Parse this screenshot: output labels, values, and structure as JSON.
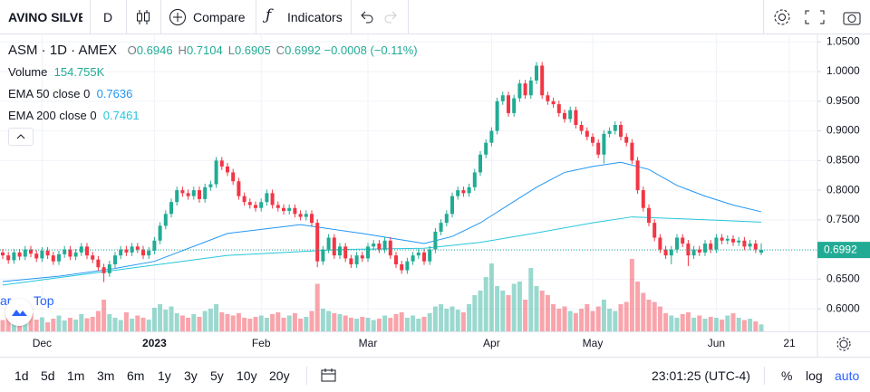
{
  "toolbar": {
    "symbol": "AVINO SILVE",
    "interval": "D",
    "compare": "Compare",
    "indicators": "Indicators"
  },
  "chart_data": {
    "type": "candlestick",
    "symbol_line": "ASM · 1D · AMEX",
    "ohlc_letters": [
      "O",
      "H",
      "L",
      "C"
    ],
    "change": "−0.0008 (−0.11%)",
    "up_color": "#22ab94",
    "down_color": "#f23645",
    "ohlc": [
      [
        0.695,
        0.701,
        0.684,
        0.69
      ],
      [
        0.69,
        0.696,
        0.676,
        0.682
      ],
      [
        0.682,
        0.701,
        0.676,
        0.695
      ],
      [
        0.695,
        0.701,
        0.682,
        0.688
      ],
      [
        0.688,
        0.706,
        0.682,
        0.7
      ],
      [
        0.7,
        0.706,
        0.687,
        0.693
      ],
      [
        0.693,
        0.699,
        0.679,
        0.685
      ],
      [
        0.685,
        0.704,
        0.679,
        0.698
      ],
      [
        0.698,
        0.704,
        0.684,
        0.69
      ],
      [
        0.69,
        0.696,
        0.674,
        0.68
      ],
      [
        0.68,
        0.698,
        0.674,
        0.692
      ],
      [
        0.692,
        0.706,
        0.686,
        0.7
      ],
      [
        0.7,
        0.706,
        0.682,
        0.688
      ],
      [
        0.688,
        0.701,
        0.682,
        0.695
      ],
      [
        0.695,
        0.711,
        0.689,
        0.705
      ],
      [
        0.705,
        0.711,
        0.684,
        0.69
      ],
      [
        0.69,
        0.696,
        0.677,
        0.683
      ],
      [
        0.683,
        0.689,
        0.664,
        0.67
      ],
      [
        0.67,
        0.676,
        0.645,
        0.66
      ],
      [
        0.66,
        0.681,
        0.654,
        0.675
      ],
      [
        0.675,
        0.696,
        0.669,
        0.69
      ],
      [
        0.69,
        0.706,
        0.684,
        0.7
      ],
      [
        0.7,
        0.706,
        0.689,
        0.695
      ],
      [
        0.695,
        0.711,
        0.689,
        0.705
      ],
      [
        0.705,
        0.711,
        0.694,
        0.7
      ],
      [
        0.7,
        0.706,
        0.684,
        0.69
      ],
      [
        0.69,
        0.704,
        0.684,
        0.698
      ],
      [
        0.698,
        0.721,
        0.692,
        0.715
      ],
      [
        0.715,
        0.746,
        0.709,
        0.74
      ],
      [
        0.74,
        0.766,
        0.734,
        0.76
      ],
      [
        0.76,
        0.786,
        0.754,
        0.78
      ],
      [
        0.78,
        0.806,
        0.774,
        0.8
      ],
      [
        0.8,
        0.806,
        0.789,
        0.795
      ],
      [
        0.795,
        0.801,
        0.784,
        0.79
      ],
      [
        0.79,
        0.806,
        0.784,
        0.8
      ],
      [
        0.8,
        0.806,
        0.779,
        0.785
      ],
      [
        0.785,
        0.811,
        0.779,
        0.805
      ],
      [
        0.805,
        0.816,
        0.799,
        0.81
      ],
      [
        0.81,
        0.856,
        0.804,
        0.85
      ],
      [
        0.85,
        0.856,
        0.834,
        0.84
      ],
      [
        0.84,
        0.846,
        0.824,
        0.83
      ],
      [
        0.83,
        0.836,
        0.809,
        0.815
      ],
      [
        0.815,
        0.821,
        0.784,
        0.79
      ],
      [
        0.79,
        0.796,
        0.774,
        0.78
      ],
      [
        0.78,
        0.786,
        0.769,
        0.775
      ],
      [
        0.775,
        0.781,
        0.764,
        0.77
      ],
      [
        0.77,
        0.786,
        0.764,
        0.78
      ],
      [
        0.78,
        0.801,
        0.774,
        0.795
      ],
      [
        0.795,
        0.801,
        0.769,
        0.775
      ],
      [
        0.775,
        0.781,
        0.764,
        0.77
      ],
      [
        0.77,
        0.776,
        0.759,
        0.765
      ],
      [
        0.765,
        0.776,
        0.759,
        0.77
      ],
      [
        0.77,
        0.776,
        0.754,
        0.76
      ],
      [
        0.76,
        0.766,
        0.749,
        0.755
      ],
      [
        0.755,
        0.766,
        0.749,
        0.76
      ],
      [
        0.76,
        0.766,
        0.739,
        0.745
      ],
      [
        0.745,
        0.751,
        0.67,
        0.68
      ],
      [
        0.68,
        0.706,
        0.674,
        0.7
      ],
      [
        0.7,
        0.726,
        0.694,
        0.72
      ],
      [
        0.72,
        0.726,
        0.684,
        0.69
      ],
      [
        0.69,
        0.711,
        0.684,
        0.705
      ],
      [
        0.705,
        0.711,
        0.679,
        0.685
      ],
      [
        0.685,
        0.691,
        0.669,
        0.675
      ],
      [
        0.675,
        0.696,
        0.669,
        0.69
      ],
      [
        0.69,
        0.696,
        0.679,
        0.685
      ],
      [
        0.685,
        0.711,
        0.679,
        0.705
      ],
      [
        0.705,
        0.716,
        0.699,
        0.71
      ],
      [
        0.71,
        0.716,
        0.694,
        0.7
      ],
      [
        0.7,
        0.721,
        0.694,
        0.715
      ],
      [
        0.715,
        0.721,
        0.684,
        0.69
      ],
      [
        0.69,
        0.696,
        0.669,
        0.675
      ],
      [
        0.675,
        0.681,
        0.659,
        0.665
      ],
      [
        0.665,
        0.686,
        0.659,
        0.68
      ],
      [
        0.68,
        0.696,
        0.674,
        0.69
      ],
      [
        0.69,
        0.701,
        0.684,
        0.695
      ],
      [
        0.695,
        0.701,
        0.674,
        0.68
      ],
      [
        0.68,
        0.706,
        0.674,
        0.7
      ],
      [
        0.7,
        0.736,
        0.694,
        0.73
      ],
      [
        0.73,
        0.751,
        0.724,
        0.745
      ],
      [
        0.745,
        0.766,
        0.739,
        0.76
      ],
      [
        0.76,
        0.796,
        0.754,
        0.79
      ],
      [
        0.79,
        0.806,
        0.784,
        0.8
      ],
      [
        0.8,
        0.806,
        0.789,
        0.795
      ],
      [
        0.795,
        0.811,
        0.789,
        0.805
      ],
      [
        0.805,
        0.836,
        0.799,
        0.83
      ],
      [
        0.83,
        0.866,
        0.824,
        0.86
      ],
      [
        0.86,
        0.886,
        0.854,
        0.88
      ],
      [
        0.88,
        0.906,
        0.874,
        0.9
      ],
      [
        0.9,
        0.956,
        0.894,
        0.95
      ],
      [
        0.95,
        0.966,
        0.944,
        0.96
      ],
      [
        0.96,
        0.966,
        0.924,
        0.93
      ],
      [
        0.93,
        0.961,
        0.924,
        0.955
      ],
      [
        0.955,
        0.986,
        0.949,
        0.98
      ],
      [
        0.98,
        0.986,
        0.954,
        0.96
      ],
      [
        0.96,
        0.991,
        0.954,
        0.985
      ],
      [
        0.985,
        1.016,
        0.979,
        1.01
      ],
      [
        1.01,
        1.016,
        0.954,
        0.96
      ],
      [
        0.96,
        0.966,
        0.944,
        0.95
      ],
      [
        0.95,
        0.956,
        0.939,
        0.945
      ],
      [
        0.945,
        0.951,
        0.924,
        0.93
      ],
      [
        0.93,
        0.936,
        0.914,
        0.92
      ],
      [
        0.92,
        0.941,
        0.914,
        0.935
      ],
      [
        0.935,
        0.941,
        0.904,
        0.91
      ],
      [
        0.91,
        0.916,
        0.894,
        0.9
      ],
      [
        0.9,
        0.906,
        0.884,
        0.89
      ],
      [
        0.89,
        0.896,
        0.874,
        0.88
      ],
      [
        0.88,
        0.886,
        0.854,
        0.86
      ],
      [
        0.86,
        0.901,
        0.845,
        0.895
      ],
      [
        0.895,
        0.906,
        0.889,
        0.9
      ],
      [
        0.9,
        0.916,
        0.894,
        0.91
      ],
      [
        0.91,
        0.916,
        0.884,
        0.89
      ],
      [
        0.89,
        0.896,
        0.874,
        0.88
      ],
      [
        0.88,
        0.886,
        0.844,
        0.85
      ],
      [
        0.85,
        0.856,
        0.794,
        0.8
      ],
      [
        0.8,
        0.806,
        0.764,
        0.77
      ],
      [
        0.77,
        0.776,
        0.739,
        0.745
      ],
      [
        0.745,
        0.751,
        0.714,
        0.72
      ],
      [
        0.72,
        0.726,
        0.694,
        0.7
      ],
      [
        0.7,
        0.706,
        0.684,
        0.69
      ],
      [
        0.69,
        0.706,
        0.675,
        0.7
      ],
      [
        0.7,
        0.726,
        0.694,
        0.72
      ],
      [
        0.72,
        0.726,
        0.704,
        0.71
      ],
      [
        0.71,
        0.716,
        0.672,
        0.69
      ],
      [
        0.69,
        0.706,
        0.684,
        0.7
      ],
      [
        0.7,
        0.706,
        0.689,
        0.695
      ],
      [
        0.695,
        0.716,
        0.689,
        0.71
      ],
      [
        0.71,
        0.716,
        0.694,
        0.7
      ],
      [
        0.7,
        0.726,
        0.694,
        0.72
      ],
      [
        0.72,
        0.726,
        0.709,
        0.715
      ],
      [
        0.715,
        0.724,
        0.709,
        0.718
      ],
      [
        0.718,
        0.724,
        0.706,
        0.712
      ],
      [
        0.712,
        0.721,
        0.706,
        0.715
      ],
      [
        0.715,
        0.721,
        0.699,
        0.705
      ],
      [
        0.705,
        0.716,
        0.699,
        0.71
      ],
      [
        0.71,
        0.716,
        0.694,
        0.7
      ],
      [
        0.6946,
        0.7104,
        0.6905,
        0.6992
      ]
    ],
    "volume": {
      "name": "Volume",
      "value_label": "154.755K",
      "values": [
        250000,
        300000,
        180000,
        350000,
        220000,
        400000,
        260000,
        310000,
        200000,
        280000,
        350000,
        240000,
        300000,
        260000,
        380000,
        290000,
        320000,
        450000,
        700000,
        380000,
        300000,
        250000,
        420000,
        280000,
        350000,
        300000,
        260000,
        520000,
        600000,
        480000,
        550000,
        400000,
        350000,
        300000,
        380000,
        320000,
        450000,
        500000,
        600000,
        420000,
        380000,
        350000,
        400000,
        300000,
        280000,
        320000,
        350000,
        300000,
        380000,
        420000,
        300000,
        350000,
        400000,
        280000,
        320000,
        450000,
        1050000,
        500000,
        450000,
        400000,
        380000,
        350000,
        300000,
        280000,
        320000,
        300000,
        250000,
        280000,
        350000,
        300000,
        380000,
        420000,
        300000,
        350000,
        280000,
        320000,
        400000,
        550000,
        600000,
        500000,
        550000,
        480000,
        420000,
        600000,
        800000,
        900000,
        1200000,
        1500000,
        1000000,
        900000,
        800000,
        1050000,
        1100000,
        700000,
        1400000,
        1000000,
        900000,
        800000,
        600000,
        500000,
        550000,
        450000,
        400000,
        500000,
        600000,
        450000,
        550000,
        700000,
        500000,
        450000,
        600000,
        650000,
        1600000,
        1100000,
        850000,
        700000,
        650000,
        550000,
        400000,
        350000,
        300000,
        380000,
        420000,
        300000,
        350000,
        280000,
        320000,
        300000,
        260000,
        350000,
        400000,
        300000,
        250000,
        280000,
        220000,
        154755
      ]
    },
    "series": [
      {
        "name": "EMA 50 close 0",
        "color": "#2196f3",
        "x": [
          0,
          10,
          20,
          27,
          40,
          53,
          64,
          75,
          80,
          85,
          90,
          95,
          100,
          105,
          110,
          115,
          120,
          125,
          130,
          135
        ],
        "values": [
          0.646,
          0.655,
          0.668,
          0.68,
          0.727,
          0.742,
          0.727,
          0.71,
          0.722,
          0.745,
          0.775,
          0.805,
          0.83,
          0.84,
          0.847,
          0.835,
          0.808,
          0.79,
          0.775,
          0.7636
        ]
      },
      {
        "name": "EMA 200 close 0",
        "color": "#26c6da",
        "x": [
          0,
          20,
          40,
          60,
          75,
          85,
          95,
          105,
          112,
          120,
          128,
          135
        ],
        "values": [
          0.64,
          0.665,
          0.69,
          0.7,
          0.702,
          0.712,
          0.728,
          0.745,
          0.755,
          0.752,
          0.749,
          0.7461
        ]
      }
    ],
    "ylim": [
      0.562,
      1.052
    ],
    "yticks": [
      {
        "value": 1.05,
        "label": "1.0500"
      },
      {
        "value": 1.0,
        "label": "1.0000"
      },
      {
        "value": 0.95,
        "label": "0.9500"
      },
      {
        "value": 0.9,
        "label": "0.9000"
      },
      {
        "value": 0.85,
        "label": "0.8500"
      },
      {
        "value": 0.8,
        "label": "0.8000"
      },
      {
        "value": 0.75,
        "label": "0.7500"
      },
      {
        "value": 0.7,
        "label": "0.7000"
      },
      {
        "value": 0.65,
        "label": "0.6500"
      },
      {
        "value": 0.6,
        "label": "0.6000"
      }
    ],
    "xticks": [
      {
        "value": 7,
        "label": "Dec"
      },
      {
        "value": 27,
        "label": "2023"
      },
      {
        "value": 46,
        "label": "Feb"
      },
      {
        "value": 65,
        "label": "Mar"
      },
      {
        "value": 87,
        "label": "Apr"
      },
      {
        "value": 105,
        "label": "May"
      },
      {
        "value": 127,
        "label": "Jun"
      },
      {
        "value": 140,
        "label": "21"
      }
    ],
    "grid": true,
    "overlay_text": [
      "ar",
      "Top"
    ]
  },
  "bottom_bar": {
    "ranges": [
      "1d",
      "5d",
      "1m",
      "3m",
      "6m",
      "1y",
      "3y",
      "5y",
      "10y",
      "20y"
    ],
    "clock": "23:01:25 (UTC-4)",
    "options": [
      "%",
      "log",
      "auto"
    ]
  }
}
